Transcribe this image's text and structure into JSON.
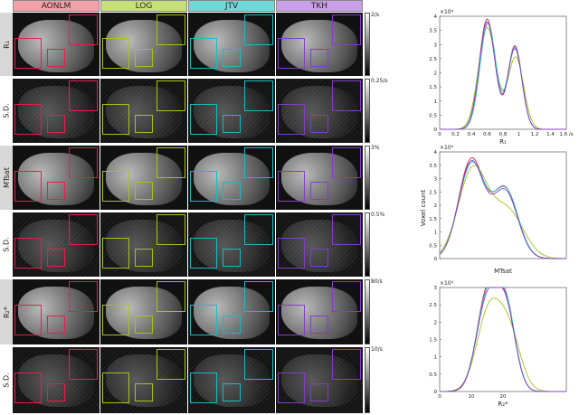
{
  "methods": [
    {
      "label": "AONLM",
      "color": "#f4a0a8",
      "box": "#e02050"
    },
    {
      "label": "LOG",
      "color": "#c8e07a",
      "box": "#a8c020"
    },
    {
      "label": "JTV",
      "color": "#6fd8d8",
      "box": "#20b8c0"
    },
    {
      "label": "TKH",
      "color": "#c9a0e8",
      "box": "#8040c0"
    }
  ],
  "rows": [
    {
      "label": "R₁",
      "cbmax": "2/s",
      "kind": "map"
    },
    {
      "label": "S.D.",
      "cbmax": "0.25/s",
      "kind": "sd"
    },
    {
      "label": "MTsat",
      "cbmax": "3%",
      "kind": "map"
    },
    {
      "label": "S.D.",
      "cbmax": "0.5%",
      "kind": "sd"
    },
    {
      "label": "R₂*",
      "cbmax": "80/s",
      "kind": "map"
    },
    {
      "label": "S.D.",
      "cbmax": "10/s",
      "kind": "sd"
    }
  ],
  "ylabel_shared": "Voxel count",
  "chart_data": [
    {
      "type": "line",
      "xlabel": "R₁",
      "exponent": "×10⁴",
      "xticks": [
        "0",
        "0.2",
        "0.4",
        "0.6",
        "0.8",
        "1",
        "1.2",
        "1.4",
        "1.6 /s"
      ],
      "xlim": [
        0,
        1.6
      ],
      "yticks": [
        "0",
        "0.5",
        "1",
        "1.5",
        "2",
        "2.5",
        "3",
        "3.5",
        "4"
      ],
      "ylim": [
        0,
        4
      ],
      "series": [
        {
          "color": "#e02050",
          "peaks": [
            [
              0.6,
              3.9,
              0.1
            ],
            [
              0.95,
              2.95,
              0.09
            ]
          ]
        },
        {
          "color": "#a8c020",
          "peaks": [
            [
              0.6,
              3.6,
              0.11
            ],
            [
              0.96,
              2.55,
              0.1
            ]
          ]
        },
        {
          "color": "#20b8c0",
          "peaks": [
            [
              0.61,
              3.75,
              0.1
            ],
            [
              0.95,
              2.9,
              0.09
            ]
          ]
        },
        {
          "color": "#8040c0",
          "peaks": [
            [
              0.6,
              3.8,
              0.1
            ],
            [
              0.95,
              2.85,
              0.09
            ]
          ]
        }
      ]
    },
    {
      "type": "line",
      "xlabel": "MTsat",
      "exponent": "×10⁴",
      "xticks": [],
      "xlim": [
        0,
        3
      ],
      "yticks": [
        "0",
        "0.5",
        "1",
        "1.5",
        "2",
        "2.5",
        "3",
        "3.5",
        "4"
      ],
      "ylim": [
        0,
        4
      ],
      "series": [
        {
          "color": "#e02050",
          "peaks": [
            [
              0.75,
              3.7,
              0.3
            ],
            [
              1.55,
              2.6,
              0.3
            ]
          ]
        },
        {
          "color": "#a8c020",
          "peaks": [
            [
              0.78,
              3.3,
              0.34
            ],
            [
              1.6,
              1.8,
              0.38
            ]
          ]
        },
        {
          "color": "#20b8c0",
          "peaks": [
            [
              0.76,
              3.55,
              0.31
            ],
            [
              1.56,
              2.55,
              0.3
            ]
          ]
        },
        {
          "color": "#8040c0",
          "peaks": [
            [
              0.75,
              3.6,
              0.3
            ],
            [
              1.55,
              2.5,
              0.3
            ]
          ]
        }
      ]
    },
    {
      "type": "line",
      "xlabel": "R₂*",
      "exponent": "×10⁴",
      "xticks": [
        "0",
        "10",
        "20"
      ],
      "xlim": [
        0,
        40
      ],
      "yticks": [
        "0",
        "0.5",
        "1",
        "1.5",
        "2",
        "2.5",
        "3"
      ],
      "ylim": [
        0,
        3
      ],
      "series": [
        {
          "color": "#e02050",
          "peaks": [
            [
              15,
              2.8,
              3.3
            ],
            [
              21,
              2.25,
              3.0
            ]
          ]
        },
        {
          "color": "#a8c020",
          "peaks": [
            [
              15.5,
              2.25,
              3.8
            ],
            [
              22,
              1.6,
              3.6
            ]
          ]
        },
        {
          "color": "#20b8c0",
          "peaks": [
            [
              15,
              2.7,
              3.4
            ],
            [
              21,
              2.3,
              3.0
            ]
          ]
        },
        {
          "color": "#8040c0",
          "peaks": [
            [
              15,
              2.6,
              3.4
            ],
            [
              21,
              2.2,
              3.0
            ]
          ]
        }
      ]
    }
  ]
}
